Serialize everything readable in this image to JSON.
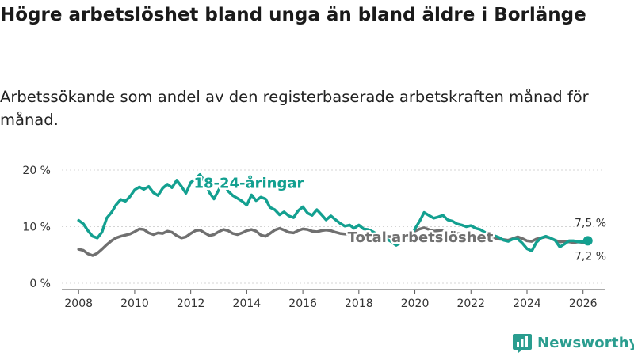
{
  "title": "Högre arbetslöshet bland unga än bland äldre i Borlänge",
  "subtitle": "Arbetssökande som andel av den registerbaserade arbetskraften månad för månad.",
  "brand": "Newsworthy",
  "colors": {
    "youth": "#13a090",
    "total": "#707070",
    "grid": "#d4d4d4",
    "brand": "#2a9d8f"
  },
  "chart_data": {
    "type": "line",
    "title": "Högre arbetslöshet bland unga än bland äldre i Borlänge",
    "xlabel": "",
    "ylabel": "",
    "xlim": [
      2007.4,
      2026.8
    ],
    "ylim": [
      0,
      20
    ],
    "yticks": [
      0,
      10,
      20
    ],
    "ytick_labels": [
      "0 %",
      "10 %",
      "20 %"
    ],
    "xticks": [
      2008,
      2010,
      2012,
      2014,
      2016,
      2018,
      2020,
      2022,
      2024,
      2026
    ],
    "xtick_labels": [
      "2008",
      "2010",
      "2012",
      "2014",
      "2016",
      "2018",
      "2020",
      "2022",
      "2024",
      "2026"
    ],
    "grid": true,
    "series": [
      {
        "name": "18-24-åringar",
        "color": "#13a090",
        "end_label": "7,5 %",
        "points": [
          [
            2008.0,
            11.1
          ],
          [
            2008.17,
            10.5
          ],
          [
            2008.33,
            9.3
          ],
          [
            2008.5,
            8.3
          ],
          [
            2008.67,
            8.0
          ],
          [
            2008.83,
            9.0
          ],
          [
            2009.0,
            11.5
          ],
          [
            2009.17,
            12.5
          ],
          [
            2009.33,
            13.8
          ],
          [
            2009.5,
            14.8
          ],
          [
            2009.67,
            14.5
          ],
          [
            2009.83,
            15.3
          ],
          [
            2010.0,
            16.5
          ],
          [
            2010.17,
            17.0
          ],
          [
            2010.33,
            16.6
          ],
          [
            2010.5,
            17.1
          ],
          [
            2010.67,
            16.0
          ],
          [
            2010.83,
            15.5
          ],
          [
            2011.0,
            16.8
          ],
          [
            2011.17,
            17.5
          ],
          [
            2011.33,
            16.9
          ],
          [
            2011.5,
            18.2
          ],
          [
            2011.67,
            17.1
          ],
          [
            2011.83,
            15.9
          ],
          [
            2012.0,
            17.8
          ],
          [
            2012.17,
            18.5
          ],
          [
            2012.33,
            19.2
          ],
          [
            2012.5,
            18.0
          ],
          [
            2012.67,
            16.0
          ],
          [
            2012.83,
            14.9
          ],
          [
            2013.0,
            16.5
          ],
          [
            2013.17,
            17.9
          ],
          [
            2013.33,
            16.3
          ],
          [
            2013.5,
            15.5
          ],
          [
            2013.67,
            15.0
          ],
          [
            2013.83,
            14.5
          ],
          [
            2014.0,
            13.8
          ],
          [
            2014.17,
            15.6
          ],
          [
            2014.33,
            14.6
          ],
          [
            2014.5,
            15.2
          ],
          [
            2014.67,
            14.9
          ],
          [
            2014.83,
            13.4
          ],
          [
            2015.0,
            13.0
          ],
          [
            2015.17,
            12.1
          ],
          [
            2015.33,
            12.6
          ],
          [
            2015.5,
            11.9
          ],
          [
            2015.67,
            11.6
          ],
          [
            2015.83,
            12.8
          ],
          [
            2016.0,
            13.5
          ],
          [
            2016.17,
            12.4
          ],
          [
            2016.33,
            12.0
          ],
          [
            2016.5,
            13.0
          ],
          [
            2016.67,
            12.1
          ],
          [
            2016.83,
            11.2
          ],
          [
            2017.0,
            11.9
          ],
          [
            2017.17,
            11.2
          ],
          [
            2017.33,
            10.6
          ],
          [
            2017.5,
            10.1
          ],
          [
            2017.67,
            10.3
          ],
          [
            2017.83,
            9.7
          ],
          [
            2018.0,
            10.3
          ],
          [
            2018.17,
            9.6
          ],
          [
            2018.33,
            9.5
          ],
          [
            2018.5,
            9.1
          ],
          [
            2018.67,
            8.6
          ],
          [
            2018.83,
            8.3
          ],
          [
            2019.0,
            7.8
          ],
          [
            2019.17,
            7.3
          ],
          [
            2019.33,
            6.7
          ],
          [
            2019.5,
            7.2
          ],
          [
            2019.67,
            7.6
          ],
          [
            2019.83,
            8.3
          ],
          [
            2020.0,
            9.6
          ],
          [
            2020.17,
            11.0
          ],
          [
            2020.33,
            12.5
          ],
          [
            2020.5,
            12.0
          ],
          [
            2020.67,
            11.5
          ],
          [
            2020.83,
            11.7
          ],
          [
            2021.0,
            12.0
          ],
          [
            2021.17,
            11.2
          ],
          [
            2021.33,
            11.0
          ],
          [
            2021.5,
            10.5
          ],
          [
            2021.67,
            10.3
          ],
          [
            2021.83,
            10.0
          ],
          [
            2022.0,
            10.2
          ],
          [
            2022.17,
            9.7
          ],
          [
            2022.33,
            9.5
          ],
          [
            2022.5,
            9.0
          ],
          [
            2022.67,
            8.7
          ],
          [
            2022.83,
            8.4
          ],
          [
            2023.0,
            8.1
          ],
          [
            2023.17,
            7.6
          ],
          [
            2023.33,
            7.4
          ],
          [
            2023.5,
            7.8
          ],
          [
            2023.67,
            7.8
          ],
          [
            2023.83,
            7.1
          ],
          [
            2024.0,
            6.1
          ],
          [
            2024.17,
            5.7
          ],
          [
            2024.33,
            7.2
          ],
          [
            2024.5,
            8.0
          ],
          [
            2024.67,
            8.3
          ],
          [
            2024.83,
            8.0
          ],
          [
            2025.0,
            7.6
          ],
          [
            2025.17,
            6.4
          ],
          [
            2025.33,
            6.9
          ],
          [
            2025.5,
            7.5
          ],
          [
            2025.67,
            7.5
          ],
          [
            2025.83,
            7.3
          ],
          [
            2026.0,
            7.3
          ],
          [
            2026.17,
            7.5
          ]
        ]
      },
      {
        "name": "Total arbetslöshet",
        "color": "#707070",
        "end_label": "7,2 %",
        "points": [
          [
            2008.0,
            6.0
          ],
          [
            2008.17,
            5.8
          ],
          [
            2008.33,
            5.2
          ],
          [
            2008.5,
            4.9
          ],
          [
            2008.67,
            5.3
          ],
          [
            2008.83,
            6.0
          ],
          [
            2009.0,
            6.8
          ],
          [
            2009.17,
            7.5
          ],
          [
            2009.33,
            8.0
          ],
          [
            2009.5,
            8.3
          ],
          [
            2009.67,
            8.5
          ],
          [
            2009.83,
            8.7
          ],
          [
            2010.0,
            9.1
          ],
          [
            2010.17,
            9.6
          ],
          [
            2010.33,
            9.5
          ],
          [
            2010.5,
            8.9
          ],
          [
            2010.67,
            8.6
          ],
          [
            2010.83,
            8.9
          ],
          [
            2011.0,
            8.8
          ],
          [
            2011.17,
            9.2
          ],
          [
            2011.33,
            9.0
          ],
          [
            2011.5,
            8.4
          ],
          [
            2011.67,
            8.0
          ],
          [
            2011.83,
            8.2
          ],
          [
            2012.0,
            8.8
          ],
          [
            2012.17,
            9.3
          ],
          [
            2012.33,
            9.4
          ],
          [
            2012.5,
            8.9
          ],
          [
            2012.67,
            8.4
          ],
          [
            2012.83,
            8.6
          ],
          [
            2013.0,
            9.1
          ],
          [
            2013.17,
            9.5
          ],
          [
            2013.33,
            9.3
          ],
          [
            2013.5,
            8.8
          ],
          [
            2013.67,
            8.6
          ],
          [
            2013.83,
            8.9
          ],
          [
            2014.0,
            9.3
          ],
          [
            2014.17,
            9.5
          ],
          [
            2014.33,
            9.2
          ],
          [
            2014.5,
            8.5
          ],
          [
            2014.67,
            8.3
          ],
          [
            2014.83,
            8.8
          ],
          [
            2015.0,
            9.4
          ],
          [
            2015.17,
            9.7
          ],
          [
            2015.33,
            9.4
          ],
          [
            2015.5,
            9.0
          ],
          [
            2015.67,
            8.9
          ],
          [
            2015.83,
            9.3
          ],
          [
            2016.0,
            9.6
          ],
          [
            2016.17,
            9.5
          ],
          [
            2016.33,
            9.2
          ],
          [
            2016.5,
            9.1
          ],
          [
            2016.67,
            9.3
          ],
          [
            2016.83,
            9.4
          ],
          [
            2017.0,
            9.3
          ],
          [
            2017.17,
            9.0
          ],
          [
            2017.33,
            8.8
          ],
          [
            2017.5,
            8.7
          ],
          [
            2017.67,
            8.6
          ],
          [
            2017.83,
            8.5
          ],
          [
            2018.0,
            8.6
          ],
          [
            2018.17,
            8.5
          ],
          [
            2018.33,
            8.4
          ],
          [
            2018.5,
            8.4
          ],
          [
            2018.67,
            8.3
          ],
          [
            2018.83,
            8.3
          ],
          [
            2019.0,
            8.3
          ],
          [
            2019.17,
            8.2
          ],
          [
            2019.33,
            8.2
          ],
          [
            2019.5,
            8.3
          ],
          [
            2019.67,
            8.4
          ],
          [
            2019.83,
            8.6
          ],
          [
            2020.0,
            9.2
          ],
          [
            2020.17,
            9.6
          ],
          [
            2020.33,
            9.8
          ],
          [
            2020.5,
            9.5
          ],
          [
            2020.67,
            9.2
          ],
          [
            2020.83,
            9.3
          ],
          [
            2021.0,
            9.4
          ],
          [
            2021.17,
            9.2
          ],
          [
            2021.33,
            9.0
          ],
          [
            2021.5,
            8.8
          ],
          [
            2021.67,
            8.7
          ],
          [
            2021.83,
            8.6
          ],
          [
            2022.0,
            8.6
          ],
          [
            2022.17,
            8.5
          ],
          [
            2022.33,
            8.3
          ],
          [
            2022.5,
            8.2
          ],
          [
            2022.67,
            8.0
          ],
          [
            2022.83,
            7.9
          ],
          [
            2023.0,
            7.8
          ],
          [
            2023.17,
            7.7
          ],
          [
            2023.33,
            7.6
          ],
          [
            2023.5,
            7.9
          ],
          [
            2023.67,
            8.2
          ],
          [
            2023.83,
            7.9
          ],
          [
            2024.0,
            7.5
          ],
          [
            2024.17,
            7.4
          ],
          [
            2024.33,
            7.8
          ],
          [
            2024.5,
            8.0
          ],
          [
            2024.67,
            8.2
          ],
          [
            2024.83,
            8.0
          ],
          [
            2025.0,
            7.6
          ],
          [
            2025.17,
            7.3
          ],
          [
            2025.33,
            7.4
          ],
          [
            2025.5,
            7.3
          ],
          [
            2025.67,
            7.2
          ],
          [
            2025.83,
            7.3
          ],
          [
            2026.0,
            7.2
          ],
          [
            2026.17,
            7.2
          ]
        ]
      }
    ],
    "annotations": [
      {
        "text": "18-24-åringar",
        "series": "18-24-åringar",
        "anchor_x": 2014.2,
        "anchor_y": 16.0
      },
      {
        "text": "Total arbetslöshet",
        "series": "Total arbetslöshet",
        "anchor_x": 2020.2,
        "anchor_y": 8.1
      }
    ]
  }
}
